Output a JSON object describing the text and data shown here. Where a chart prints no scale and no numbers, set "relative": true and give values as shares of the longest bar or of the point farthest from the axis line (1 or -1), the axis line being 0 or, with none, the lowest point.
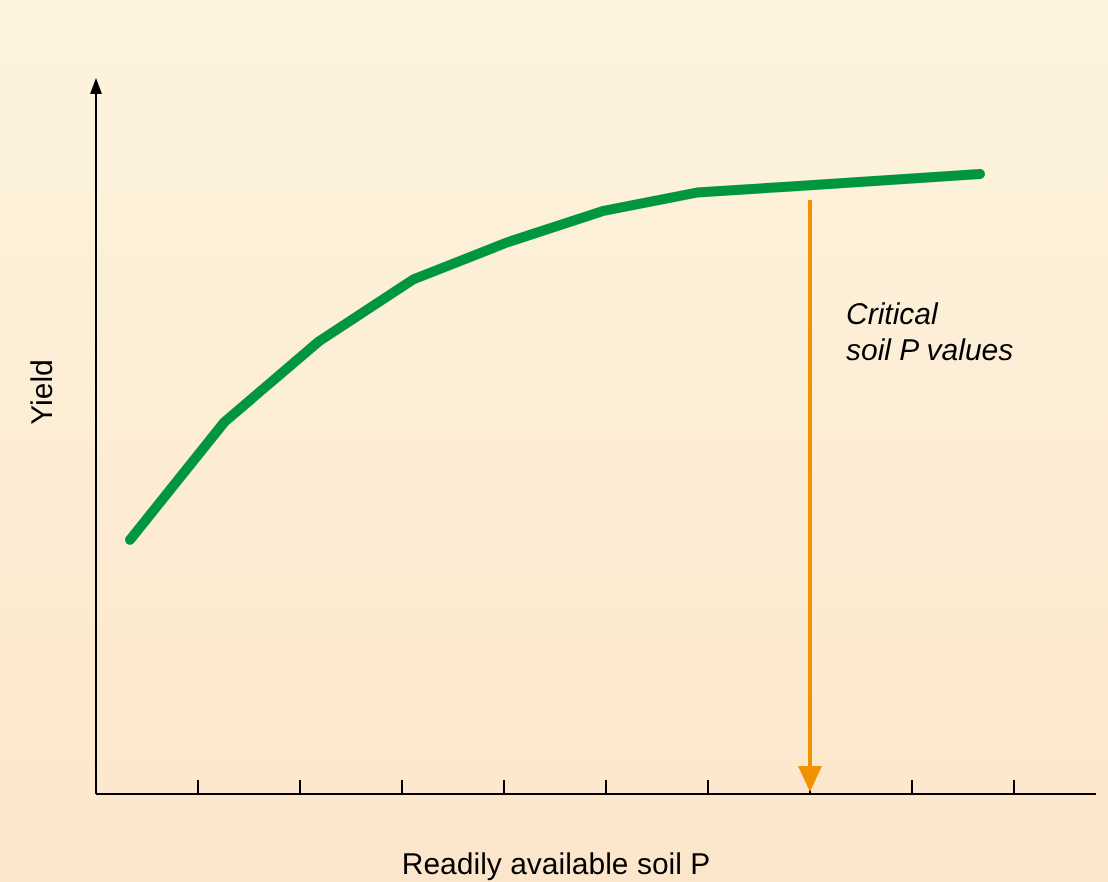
{
  "chart_data": {
    "type": "line",
    "relative": true,
    "xlabel": "Readily available soil P",
    "ylabel": "Yield",
    "categories": [
      null,
      null,
      null,
      null,
      null,
      null,
      null,
      null,
      null,
      null
    ],
    "series": [
      {
        "color": "#00963f",
        "values": [
          0.41,
          0.6,
          0.73,
          0.83,
          0.89,
          0.94,
          0.97,
          0.98,
          0.99,
          1
        ]
      }
    ],
    "annotations": [
      "Critical\nsoil P values"
    ],
    "marker": "none",
    "line_style": "solid"
  }
}
